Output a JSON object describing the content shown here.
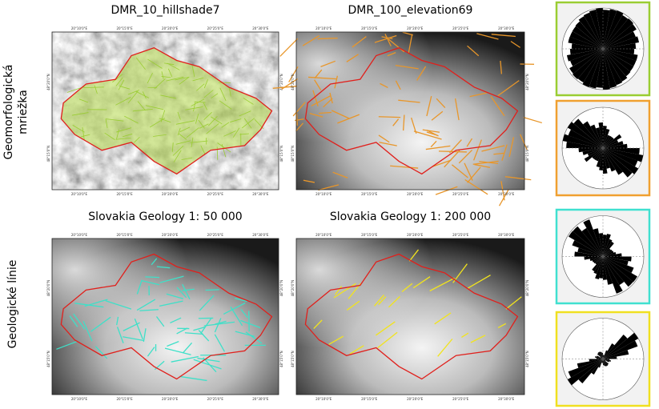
{
  "row_labels": [
    [
      "Geomorfologická",
      "mriežka"
    ],
    [
      "Geologické línie"
    ]
  ],
  "panels": [
    {
      "title": "DMR_10_hillshade7"
    },
    {
      "title": "DMR_100_elevation69"
    },
    {
      "title": "Slovakia Geology 1: 50 000"
    },
    {
      "title": "Slovakia Geology 1: 200 000"
    }
  ],
  "lon_labels": [
    "20°10'0\"E",
    "20°15'0\"E",
    "20°20'0\"E",
    "20°25'0\"E",
    "20°30'0\"E"
  ],
  "lat_labels": [
    "48°20'0\"N",
    "48°15'0\"N"
  ]
}
